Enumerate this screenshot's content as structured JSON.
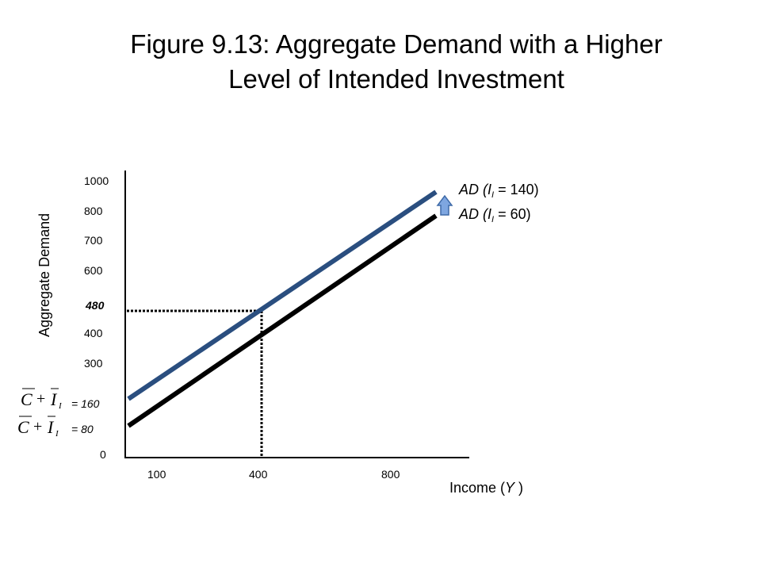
{
  "title_line1": "Figure 9.13: Aggregate Demand with a Higher",
  "title_line2": "Level of Intended Investment",
  "chart_data": {
    "type": "line",
    "xlabel_main": "Income (",
    "xlabel_var": "Y",
    "xlabel_close": " )",
    "ylabel": "Aggregate Demand",
    "x_ticks": [
      "100",
      "400",
      "800"
    ],
    "y_ticks": [
      "1000",
      "800",
      "700",
      "600",
      "480",
      "400",
      "300",
      "= 160",
      "=  80",
      "0"
    ],
    "intercept_symbols": [
      {
        "C": "C",
        "plus": "+",
        "I": "I",
        "sub": "I",
        "value_label": "= 160"
      },
      {
        "C": "C",
        "plus": "+",
        "I": "I",
        "sub": "I",
        "value_label": "=  80"
      }
    ],
    "series": [
      {
        "name": "AD (II = 140)",
        "label_prefix": "AD (",
        "label_var": "I",
        "label_sub": "I",
        "label_suffix": " = 140)",
        "color": "#2a4e7f",
        "intercept": 160,
        "slope": 0.8
      },
      {
        "name": "AD (II = 60)",
        "label_prefix": "AD (",
        "label_var": "I",
        "label_sub": "I",
        "label_suffix": " = 60)",
        "color": "#000000",
        "intercept": 80,
        "slope": 0.8
      }
    ],
    "reference": {
      "x": 400,
      "y": 480
    },
    "shift_arrow_color": "#7ea6e0"
  }
}
